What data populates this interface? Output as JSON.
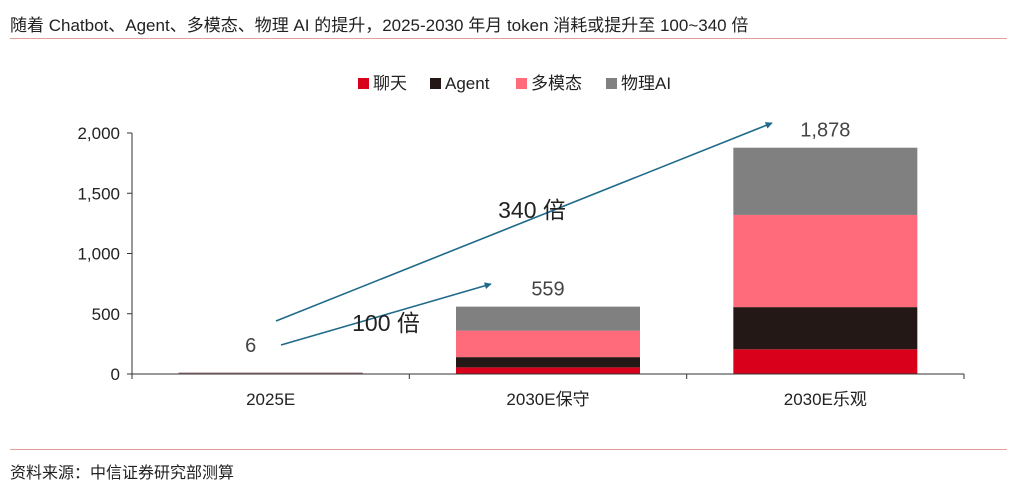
{
  "header": {
    "title": "随着 Chatbot、Agent、多模态、物理 AI 的提升，2025-2030 年月 token 消耗或提升至 100~340 倍"
  },
  "footer": {
    "source": "资料来源：中信证券研究部测算"
  },
  "chart_data": {
    "type": "bar",
    "stacked": true,
    "title": "",
    "xlabel": "",
    "ylabel": "",
    "categories": [
      "2025E",
      "2030E保守",
      "2030E乐观"
    ],
    "ylim": [
      0,
      2000
    ],
    "yticks": [
      0,
      500,
      1000,
      1500,
      2000
    ],
    "ytick_labels": [
      "0",
      "500",
      "1,000",
      "1,500",
      "2,000"
    ],
    "legend_position": "top-center",
    "grid": false,
    "series": [
      {
        "name": "聊天",
        "color": "#d9001b",
        "values": [
          5,
          55,
          205
        ]
      },
      {
        "name": "Agent",
        "color": "#231815",
        "values": [
          0.3,
          85,
          350
        ]
      },
      {
        "name": "多模态",
        "color": "#ff6b7a",
        "values": [
          0.4,
          220,
          765
        ]
      },
      {
        "name": "物理AI",
        "color": "#808080",
        "values": [
          0.3,
          199,
          558
        ]
      }
    ],
    "totals": [
      6,
      559,
      1878
    ],
    "total_labels": [
      "6",
      "559",
      "1,878"
    ],
    "annotations": [
      {
        "text": "100 倍",
        "from_category": 0,
        "to_category": 1
      },
      {
        "text": "340 倍",
        "from_category": 0,
        "to_category": 2
      }
    ],
    "arrow_color": "#1f6a8a"
  }
}
